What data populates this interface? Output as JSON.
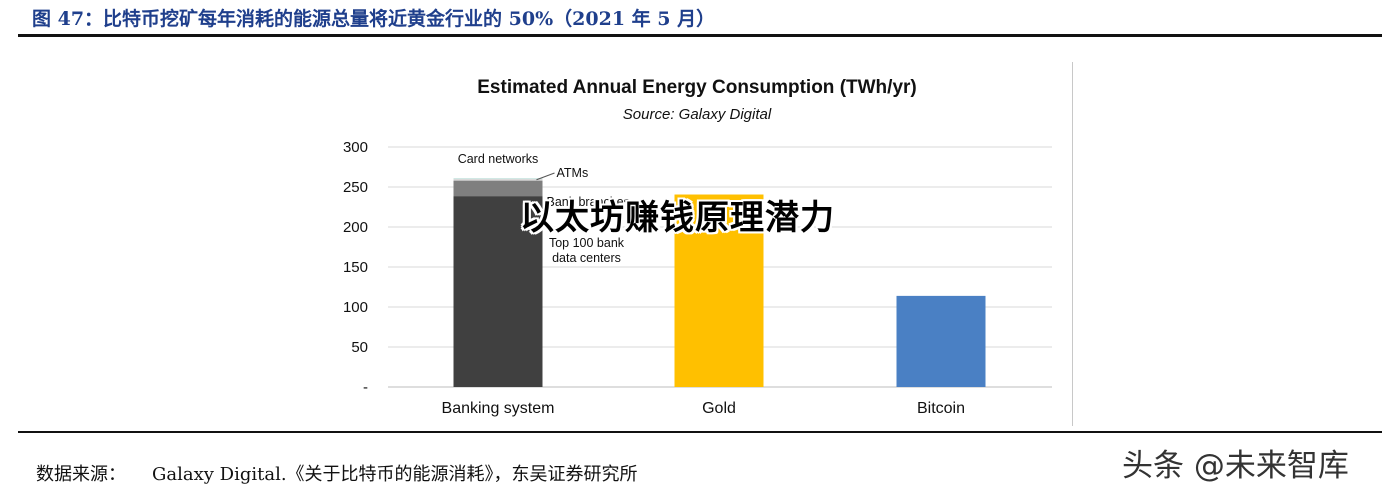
{
  "figure": {
    "caption": "图 47：比特币挖矿每年消耗的能源总量将近黄金行业的 50%（2021 年 5 月）",
    "source_label": "数据来源：",
    "source_text": "Galaxy Digital.《关于比特币的能源消耗》，东吴证券研究所",
    "overlay_text": "以太坊赚钱原理潜力",
    "brand_text": "头条 @未来智库"
  },
  "chart_data": {
    "type": "bar",
    "stacked": true,
    "title": "Estimated Annual Energy Consumption (TWh/yr)",
    "subtitle": "Source: Galaxy Digital",
    "xlabel": "",
    "ylabel": "",
    "categories": [
      "Banking system",
      "Gold",
      "Bitcoin"
    ],
    "ylim": [
      0,
      300
    ],
    "yticks": [
      0,
      50,
      100,
      150,
      200,
      250,
      300
    ],
    "ytick_labels": [
      "-",
      "50",
      "100",
      "150",
      "200",
      "250",
      "300"
    ],
    "grid": true,
    "legend": "none",
    "series": [
      {
        "name": "Top 100 bank data centers",
        "values": [
          238.6,
          240.6,
          113.9
        ],
        "colors": [
          "#404040",
          "#ffc000",
          "#4a80c4"
        ]
      },
      {
        "name": "Bank branches",
        "values": [
          19.4,
          0,
          0
        ],
        "color": "#7f7f7f"
      },
      {
        "name": "ATMs",
        "values": [
          2.3,
          0,
          0
        ],
        "color": "#d9d9d9"
      },
      {
        "name": "Card networks",
        "values": [
          0.6,
          0,
          0
        ],
        "color": "#a8d8d0"
      }
    ],
    "annotations": [
      {
        "text": "Card networks",
        "series": "Card networks"
      },
      {
        "text": "ATMs",
        "series": "ATMs"
      },
      {
        "text": "Bank branches",
        "series": "Bank branches"
      },
      {
        "text": "Top 100 bank",
        "series": "Top 100 bank data centers"
      },
      {
        "text": "data centers",
        "series": "Top 100 bank data centers"
      }
    ]
  }
}
